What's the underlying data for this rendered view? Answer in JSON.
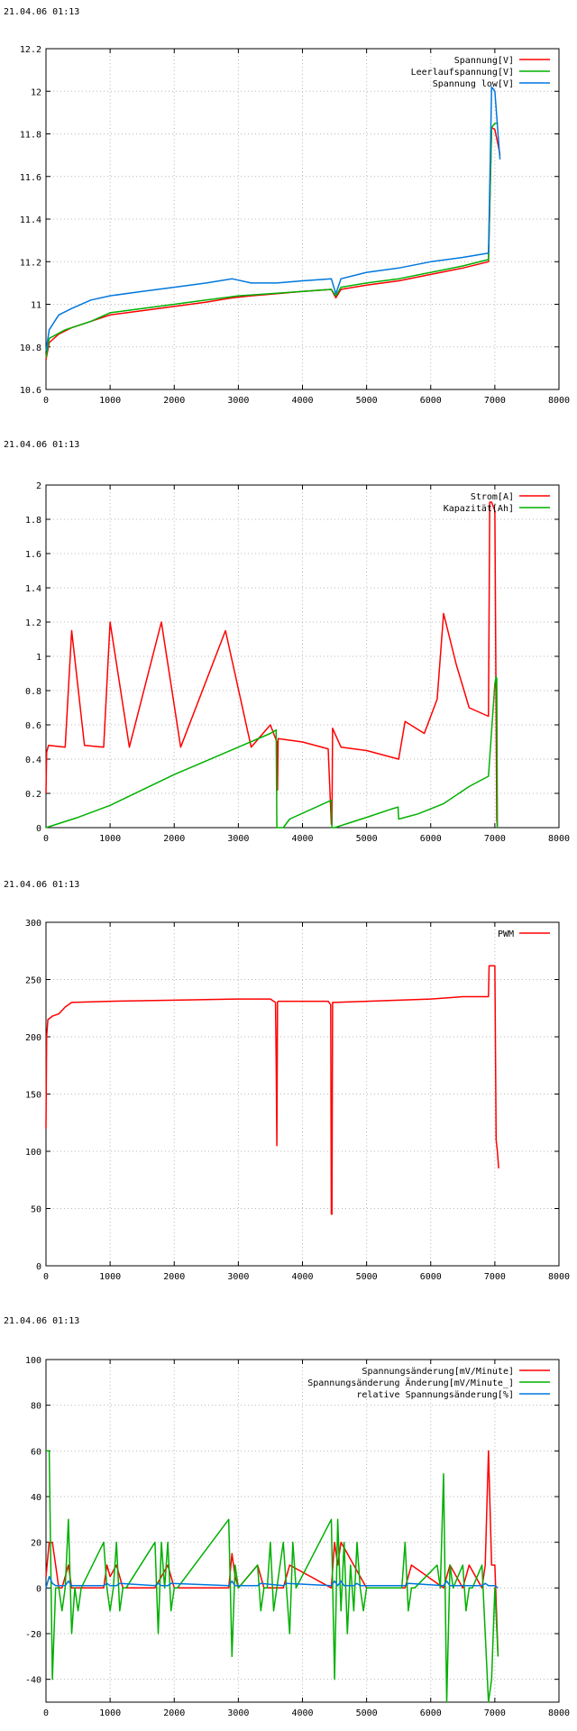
{
  "charts": [
    {
      "timestamp": "21.04.06 01:13",
      "chart_data": {
        "type": "line",
        "title": "",
        "xlabel": "",
        "ylabel": "",
        "xlim": [
          0,
          8000
        ],
        "ylim": [
          10.6,
          12.2
        ],
        "xticks": [
          0,
          1000,
          2000,
          3000,
          4000,
          5000,
          6000,
          7000,
          8000
        ],
        "yticks": [
          10.6,
          10.8,
          11,
          11.2,
          11.4,
          11.6,
          11.8,
          12,
          12.2
        ],
        "ytick_labels": [
          "10.6",
          "10.8",
          "11",
          "11.2",
          "11.4",
          "11.6",
          "11.8",
          "12",
          "12.2"
        ],
        "grid": true,
        "legend_position": "top-right",
        "series": [
          {
            "name": "Spannung[V]",
            "color": "#ff0000",
            "x": [
              0,
              50,
              200,
              400,
              700,
              1000,
              1500,
              2000,
              2500,
              2900,
              3200,
              3600,
              4000,
              4450,
              4520,
              4600,
              5000,
              5500,
              6000,
              6500,
              6900,
              6950,
              7000,
              7050,
              7080
            ],
            "y": [
              10.74,
              10.82,
              10.86,
              10.89,
              10.92,
              10.95,
              10.97,
              10.99,
              11.01,
              11.03,
              11.04,
              11.05,
              11.06,
              11.07,
              11.03,
              11.07,
              11.09,
              11.11,
              11.14,
              11.17,
              11.2,
              11.83,
              11.82,
              11.75,
              11.7
            ]
          },
          {
            "name": "Leerlaufspannung[V]",
            "color": "#00b000",
            "x": [
              0,
              50,
              300,
              700,
              1000,
              1500,
              2000,
              2500,
              3000,
              3500,
              4000,
              4450,
              4520,
              4600,
              5000,
              5500,
              6000,
              6500,
              6900,
              6950,
              7000,
              7050
            ],
            "y": [
              10.75,
              10.84,
              10.88,
              10.92,
              10.96,
              10.98,
              11.0,
              11.02,
              11.04,
              11.05,
              11.06,
              11.07,
              11.04,
              11.08,
              11.1,
              11.12,
              11.15,
              11.18,
              11.21,
              11.83,
              11.85,
              11.85
            ]
          },
          {
            "name": "Spannung low[V]",
            "color": "#0077dd",
            "x": [
              0,
              50,
              200,
              400,
              700,
              1000,
              1500,
              2000,
              2500,
              2900,
              3200,
              3600,
              4000,
              4450,
              4520,
              4600,
              5000,
              5500,
              6000,
              6500,
              6900,
              6950,
              7000,
              7050,
              7080
            ],
            "y": [
              10.78,
              10.88,
              10.95,
              10.98,
              11.02,
              11.04,
              11.06,
              11.08,
              11.1,
              11.12,
              11.1,
              11.1,
              11.11,
              11.12,
              11.05,
              11.12,
              11.15,
              11.17,
              11.2,
              11.22,
              11.24,
              12.02,
              12.0,
              11.8,
              11.68
            ]
          }
        ]
      }
    },
    {
      "timestamp": "21.04.06 01:13",
      "chart_data": {
        "type": "line",
        "title": "",
        "xlabel": "",
        "ylabel": "",
        "xlim": [
          0,
          8000
        ],
        "ylim": [
          0,
          2
        ],
        "xticks": [
          0,
          1000,
          2000,
          3000,
          4000,
          5000,
          6000,
          7000,
          8000
        ],
        "yticks": [
          0,
          0.2,
          0.4,
          0.6,
          0.8,
          1,
          1.2,
          1.4,
          1.6,
          1.8,
          2
        ],
        "ytick_labels": [
          "0",
          "0.2",
          "0.4",
          "0.6",
          "0.8",
          "1",
          "1.2",
          "1.4",
          "1.6",
          "1.8",
          "2"
        ],
        "grid": true,
        "legend_position": "top-right",
        "series": [
          {
            "name": "Strom[A]",
            "color": "#ff0000",
            "x": [
              0,
              10,
              40,
              300,
              400,
              600,
              900,
              1000,
              1300,
              1800,
              2100,
              2800,
              3200,
              3500,
              3600,
              3610,
              3620,
              4000,
              4400,
              4450,
              4460,
              4470,
              4600,
              5000,
              5500,
              5600,
              5900,
              6100,
              6200,
              6400,
              6600,
              6900,
              6920,
              6950,
              7000,
              7030,
              7040
            ],
            "y": [
              0.2,
              0.44,
              0.48,
              0.47,
              1.15,
              0.48,
              0.47,
              1.2,
              0.47,
              1.2,
              0.47,
              1.15,
              0.47,
              0.6,
              0.5,
              0.22,
              0.52,
              0.5,
              0.46,
              0.02,
              0.02,
              0.58,
              0.47,
              0.45,
              0.4,
              0.62,
              0.55,
              0.75,
              1.25,
              0.95,
              0.7,
              0.65,
              1.9,
              1.9,
              1.85,
              0.05,
              0.0
            ]
          },
          {
            "name": "Kapazität[Ah]",
            "color": "#00b000",
            "x": [
              0,
              500,
              1000,
              1500,
              2000,
              2500,
              3000,
              3500,
              3590,
              3600,
              3700,
              3800,
              4450,
              4460,
              4500,
              5000,
              5400,
              5490,
              5500,
              5800,
              6200,
              6600,
              6900,
              7000,
              7020,
              7030,
              7040
            ],
            "y": [
              0.0,
              0.06,
              0.13,
              0.22,
              0.31,
              0.39,
              0.47,
              0.55,
              0.57,
              0.0,
              0.0,
              0.05,
              0.16,
              0.0,
              0.0,
              0.06,
              0.11,
              0.12,
              0.05,
              0.08,
              0.14,
              0.24,
              0.3,
              0.84,
              0.88,
              0.87,
              0.0
            ]
          }
        ]
      }
    },
    {
      "timestamp": "21.04.06 01:13",
      "chart_data": {
        "type": "line",
        "title": "",
        "xlabel": "",
        "ylabel": "",
        "xlim": [
          0,
          8000
        ],
        "ylim": [
          0,
          300
        ],
        "xticks": [
          0,
          1000,
          2000,
          3000,
          4000,
          5000,
          6000,
          7000,
          8000
        ],
        "yticks": [
          0,
          50,
          100,
          150,
          200,
          250,
          300
        ],
        "ytick_labels": [
          "0",
          "50",
          "100",
          "150",
          "200",
          "250",
          "300"
        ],
        "grid": true,
        "legend_position": "top-right",
        "series": [
          {
            "name": "PWM",
            "color": "#ff0000",
            "x": [
              0,
              10,
              30,
              100,
              200,
              300,
              400,
              1000,
              2000,
              3000,
              3500,
              3580,
              3590,
              3600,
              3610,
              3620,
              4000,
              4400,
              4440,
              4450,
              4460,
              4470,
              4480,
              5000,
              5500,
              6000,
              6500,
              6900,
              6910,
              6950,
              7000,
              7020,
              7040,
              7060
            ],
            "y": [
              120,
              200,
              215,
              218,
              220,
              226,
              230,
              231,
              232,
              233,
              233,
              230,
              180,
              105,
              230,
              231,
              231,
              231,
              228,
              45,
              45,
              230,
              230,
              231,
              232,
              233,
              235,
              235,
              262,
              262,
              262,
              110,
              100,
              85
            ]
          }
        ]
      }
    },
    {
      "timestamp": "21.04.06 01:13",
      "chart_data": {
        "type": "line",
        "title": "",
        "xlabel": "",
        "ylabel": "",
        "xlim": [
          0,
          8000
        ],
        "ylim": [
          -50,
          100
        ],
        "xticks": [
          0,
          1000,
          2000,
          3000,
          4000,
          5000,
          6000,
          7000,
          8000
        ],
        "yticks": [
          -40,
          -20,
          0,
          20,
          40,
          60,
          80,
          100
        ],
        "ytick_labels": [
          "-40",
          "-20",
          "0",
          "20",
          "40",
          "60",
          "80",
          "100"
        ],
        "grid": true,
        "legend_position": "top-right",
        "series": [
          {
            "name": "Spannungsänderung[mV/Minute]",
            "color": "#ff0000",
            "x": [
              0,
              50,
              100,
              150,
              200,
              250,
              300,
              350,
              400,
              500,
              900,
              950,
              1000,
              1100,
              1200,
              1700,
              1800,
              1900,
              2000,
              2850,
              2900,
              2950,
              3000,
              3300,
              3400,
              3700,
              3800,
              4450,
              4500,
              4550,
              4600,
              4700,
              4800,
              4900,
              5000,
              5600,
              5700,
              6200,
              6300,
              6500,
              6600,
              6800,
              6850,
              6900,
              6950,
              7000,
              7050
            ],
            "y": [
              5,
              20,
              20,
              10,
              0,
              0,
              5,
              10,
              0,
              0,
              0,
              10,
              5,
              10,
              0,
              0,
              5,
              10,
              0,
              0,
              15,
              5,
              0,
              10,
              0,
              0,
              10,
              0,
              20,
              10,
              20,
              15,
              10,
              5,
              0,
              0,
              10,
              0,
              10,
              0,
              10,
              0,
              10,
              60,
              10,
              10,
              -30
            ]
          },
          {
            "name": "Spannungsänderung Änderung[mV/Minute_]",
            "color": "#00b000",
            "x": [
              0,
              50,
              100,
              150,
              200,
              250,
              300,
              350,
              400,
              450,
              500,
              550,
              900,
              950,
              1000,
              1050,
              1100,
              1150,
              1200,
              1250,
              1700,
              1750,
              1800,
              1850,
              1900,
              1950,
              2000,
              2050,
              2850,
              2900,
              2950,
              3000,
              3300,
              3350,
              3400,
              3450,
              3500,
              3550,
              3700,
              3750,
              3800,
              3850,
              3900,
              4450,
              4500,
              4550,
              4600,
              4650,
              4700,
              4750,
              4800,
              4850,
              4900,
              4950,
              5000,
              5550,
              5600,
              5650,
              5700,
              5750,
              6100,
              6150,
              6200,
              6250,
              6300,
              6350,
              6500,
              6550,
              6600,
              6650,
              6800,
              6850,
              6900,
              6950,
              7000,
              7050
            ],
            "y": [
              60,
              60,
              -40,
              0,
              0,
              -10,
              0,
              30,
              -20,
              0,
              -10,
              0,
              20,
              0,
              -10,
              0,
              20,
              -10,
              0,
              0,
              20,
              -20,
              20,
              0,
              20,
              -10,
              0,
              0,
              30,
              -30,
              10,
              0,
              10,
              -10,
              0,
              0,
              20,
              -10,
              20,
              0,
              -20,
              20,
              0,
              30,
              -40,
              30,
              -10,
              20,
              -20,
              10,
              -10,
              20,
              0,
              -10,
              0,
              0,
              20,
              -10,
              0,
              0,
              10,
              0,
              50,
              -50,
              10,
              0,
              10,
              -10,
              0,
              0,
              10,
              -20,
              -50,
              -40,
              0,
              -30
            ]
          },
          {
            "name": "relative Spannungsänderung[%]",
            "color": "#0077dd",
            "x": [
              0,
              50,
              100,
              150,
              300,
              350,
              400,
              900,
              950,
              1000,
              1100,
              1150,
              1700,
              1750,
              1800,
              1900,
              1950,
              2850,
              2900,
              2950,
              3300,
              3350,
              3700,
              3750,
              4450,
              4500,
              4550,
              4600,
              4650,
              4800,
              4850,
              4900,
              5600,
              5650,
              6200,
              6250,
              6300,
              6800,
              6850,
              6900,
              6950,
              7000,
              7050
            ],
            "y": [
              0,
              5,
              2,
              1,
              1,
              3,
              1,
              1,
              2,
              1,
              1,
              2,
              1,
              2,
              1,
              1,
              2,
              1,
              3,
              1,
              1,
              2,
              1,
              2,
              1,
              3,
              1,
              3,
              1,
              1,
              2,
              1,
              1,
              2,
              1,
              3,
              1,
              1,
              2,
              1,
              1,
              1,
              0
            ]
          }
        ]
      }
    }
  ]
}
